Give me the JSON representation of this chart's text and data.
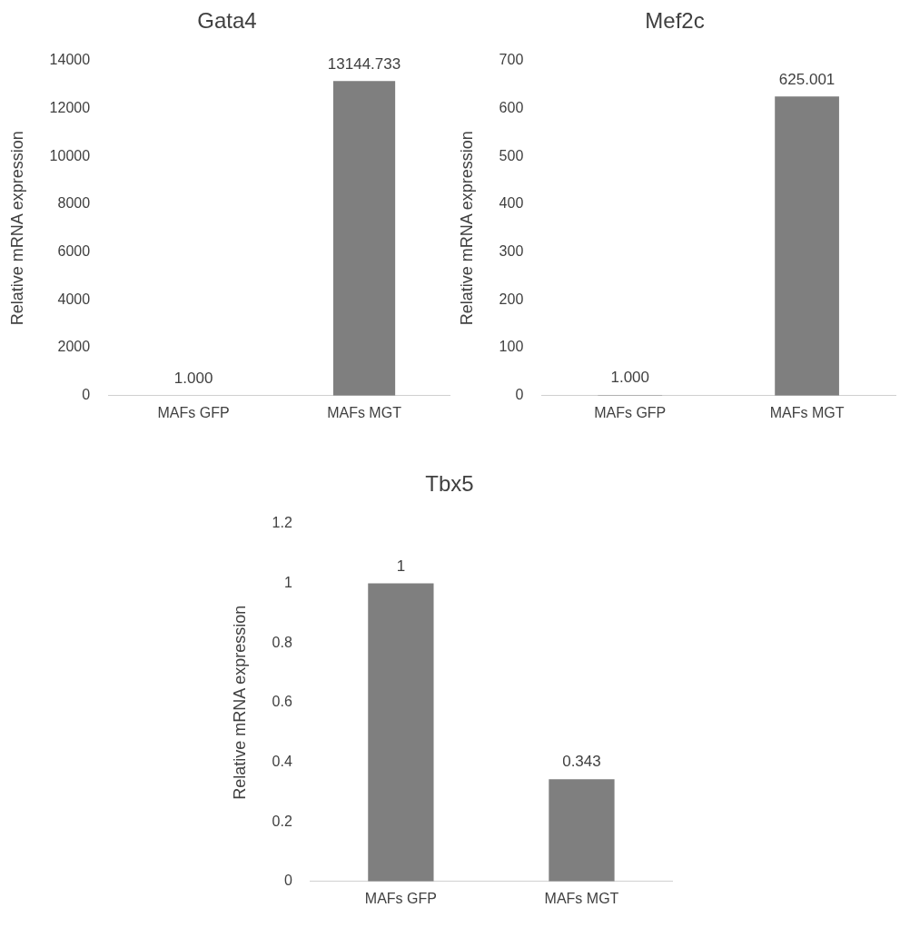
{
  "chart_data": [
    {
      "type": "bar",
      "title": "Gata4",
      "ylabel": "Relative mRNA expression",
      "categories": [
        "MAFs GFP",
        "MAFs MGT"
      ],
      "values": [
        1.0,
        13144.733
      ],
      "value_labels": [
        "1.000",
        "13144.733"
      ],
      "color": "#7f7f7f",
      "ylim": [
        0,
        14000
      ],
      "yticks": [
        0,
        2000,
        4000,
        6000,
        8000,
        10000,
        12000,
        14000
      ],
      "grid": false,
      "legend": false
    },
    {
      "type": "bar",
      "title": "Mef2c",
      "ylabel": "Relative mRNA expression",
      "categories": [
        "MAFs GFP",
        "MAFs MGT"
      ],
      "values": [
        1.0,
        625.001
      ],
      "value_labels": [
        "1.000",
        "625.001"
      ],
      "color": "#7f7f7f",
      "ylim": [
        0,
        700
      ],
      "yticks": [
        0,
        100,
        200,
        300,
        400,
        500,
        600,
        700
      ],
      "grid": false,
      "legend": false
    },
    {
      "type": "bar",
      "title": "Tbx5",
      "ylabel": "Relative mRNA expression",
      "categories": [
        "MAFs GFP",
        "MAFs MGT"
      ],
      "values": [
        1,
        0.343
      ],
      "data_labels": true,
      "color": "#7f7f7f",
      "ylim": [
        0,
        1.2
      ],
      "yticks": [
        0,
        0.2,
        0.4,
        0.6,
        0.8,
        1,
        1.2
      ],
      "grid": false,
      "legend": false
    }
  ]
}
